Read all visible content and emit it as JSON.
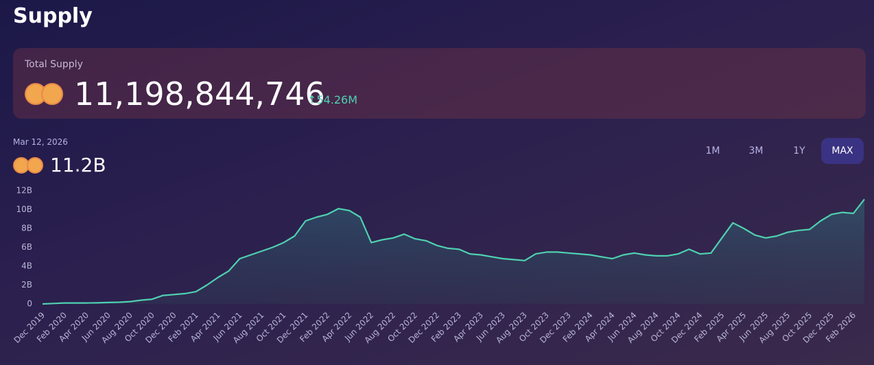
{
  "header": {
    "title": "Supply"
  },
  "total_card": {
    "label": "Total Supply",
    "value": "11,198,844,746",
    "change": "↑54.26M"
  },
  "current": {
    "date": "Mar 12, 2026",
    "value": "11.2B"
  },
  "range_buttons": [
    "1M",
    "3M",
    "1Y",
    "MAX"
  ],
  "active_range": "MAX",
  "chart_data": {
    "type": "area",
    "color": "#4fd1b0",
    "x": [
      "Dec 2019",
      "Jan 2020",
      "Feb 2020",
      "Mar 2020",
      "Apr 2020",
      "May 2020",
      "Jun 2020",
      "Jul 2020",
      "Aug 2020",
      "Sep 2020",
      "Oct 2020",
      "Nov 2020",
      "Dec 2020",
      "Jan 2021",
      "Feb 2021",
      "Mar 2021",
      "Apr 2021",
      "May 2021",
      "Jun 2021",
      "Jul 2021",
      "Aug 2021",
      "Sep 2021",
      "Oct 2021",
      "Nov 2021",
      "Dec 2021",
      "Jan 2022",
      "Feb 2022",
      "Mar 2022",
      "Apr 2022",
      "May 2022",
      "Jun 2022",
      "Jul 2022",
      "Aug 2022",
      "Sep 2022",
      "Oct 2022",
      "Nov 2022",
      "Dec 2022",
      "Jan 2023",
      "Feb 2023",
      "Mar 2023",
      "Apr 2023",
      "May 2023",
      "Jun 2023",
      "Jul 2023",
      "Aug 2023",
      "Sep 2023",
      "Oct 2023",
      "Nov 2023",
      "Dec 2023",
      "Jan 2024",
      "Feb 2024",
      "Mar 2024",
      "Apr 2024",
      "May 2024",
      "Jun 2024",
      "Jul 2024",
      "Aug 2024",
      "Sep 2024",
      "Oct 2024",
      "Nov 2024",
      "Dec 2024",
      "Jan 2025",
      "Feb 2025",
      "Mar 2025",
      "Apr 2025",
      "May 2025",
      "Jun 2025",
      "Jul 2025",
      "Aug 2025",
      "Sep 2025",
      "Oct 2025",
      "Nov 2025",
      "Dec 2025",
      "Jan 2026",
      "Feb 2026",
      "Mar 2026"
    ],
    "values": [
      0,
      0.05,
      0.1,
      0.1,
      0.1,
      0.12,
      0.15,
      0.18,
      0.25,
      0.4,
      0.5,
      0.9,
      1.0,
      1.1,
      1.3,
      2.0,
      2.8,
      3.5,
      4.8,
      5.2,
      5.6,
      6.0,
      6.5,
      7.2,
      8.8,
      9.2,
      9.5,
      10.1,
      9.9,
      9.2,
      6.5,
      6.8,
      7.0,
      7.4,
      6.9,
      6.7,
      6.2,
      5.9,
      5.8,
      5.3,
      5.2,
      5.0,
      4.8,
      4.7,
      4.6,
      5.3,
      5.5,
      5.5,
      5.4,
      5.3,
      5.2,
      5.0,
      4.8,
      5.2,
      5.4,
      5.2,
      5.1,
      5.1,
      5.3,
      5.8,
      5.3,
      5.4,
      7.0,
      8.6,
      8.0,
      7.3,
      7.0,
      7.2,
      7.6,
      7.8,
      7.9,
      8.8,
      9.5,
      9.7,
      9.6,
      11.1
    ],
    "xticks": [
      "Dec 2019",
      "Feb 2020",
      "Apr 2020",
      "Jun 2020",
      "Aug 2020",
      "Oct 2020",
      "Dec 2020",
      "Feb 2021",
      "Apr 2021",
      "Jun 2021",
      "Aug 2021",
      "Oct 2021",
      "Dec 2021",
      "Feb 2022",
      "Apr 2022",
      "Jun 2022",
      "Aug 2022",
      "Oct 2022",
      "Dec 2022",
      "Feb 2023",
      "Apr 2023",
      "Jun 2023",
      "Aug 2023",
      "Oct 2023",
      "Dec 2023",
      "Feb 2024",
      "Apr 2024",
      "Jun 2024",
      "Aug 2024",
      "Oct 2024",
      "Dec 2024",
      "Feb 2025",
      "Apr 2025",
      "Jun 2025",
      "Aug 2025",
      "Oct 2025",
      "Dec 2025",
      "Feb 2026"
    ],
    "ylim": [
      0,
      12
    ],
    "yticks": [
      0,
      {
        "value": 2,
        "label": "2B"
      },
      {
        "value": 4,
        "label": "4B"
      },
      {
        "value": 6,
        "label": "6B"
      },
      {
        "value": 8,
        "label": "8B"
      },
      {
        "value": 10,
        "label": "10B"
      },
      {
        "value": 12,
        "label": "12B"
      }
    ]
  }
}
